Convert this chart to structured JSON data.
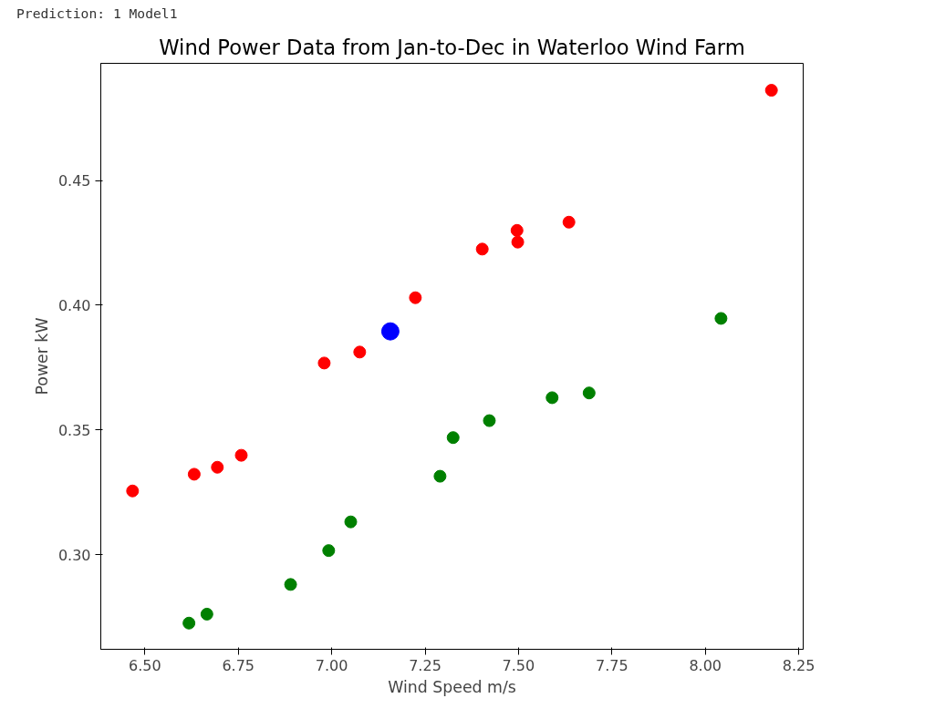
{
  "chart_data": {
    "type": "scatter",
    "title": "Wind Power Data from Jan-to-Dec in Waterloo Wind Farm",
    "xlabel": "Wind Speed m/s",
    "ylabel": "Power kW",
    "annotations": [
      "Prediction: 1 Model1"
    ],
    "series": [
      {
        "color": "#ff0000",
        "x": [
          6.467,
          6.632,
          6.694,
          6.758,
          6.98,
          7.075,
          7.224,
          7.403,
          7.496,
          7.498,
          7.635,
          8.177
        ],
        "values": [
          0.3255,
          0.3322,
          0.335,
          0.3398,
          0.3768,
          0.3812,
          0.403,
          0.4225,
          0.43,
          0.4253,
          0.4333,
          0.4862
        ]
      },
      {
        "color": "#008000",
        "x": [
          6.618,
          6.666,
          6.89,
          6.992,
          7.051,
          7.29,
          7.325,
          7.422,
          7.59,
          7.689,
          8.042
        ],
        "values": [
          0.2725,
          0.2761,
          0.288,
          0.3016,
          0.3131,
          0.3314,
          0.3469,
          0.3537,
          0.3629,
          0.3648,
          0.3947
        ]
      },
      {
        "color": "#0000ff",
        "x": [
          7.157
        ],
        "values": [
          0.3895
        ]
      }
    ],
    "xlim": [
      6.382,
      8.262
    ],
    "ylim": [
      0.262,
      0.497
    ],
    "xticks": [
      {
        "value": 6.5,
        "label": "6.50"
      },
      {
        "value": 6.75,
        "label": "6.75"
      },
      {
        "value": 7.0,
        "label": "7.00"
      },
      {
        "value": 7.25,
        "label": "7.25"
      },
      {
        "value": 7.5,
        "label": "7.50"
      },
      {
        "value": 7.75,
        "label": "7.75"
      },
      {
        "value": 8.0,
        "label": "8.00"
      },
      {
        "value": 8.25,
        "label": "8.25"
      }
    ],
    "yticks": [
      {
        "value": 0.3,
        "label": "0.30"
      },
      {
        "value": 0.35,
        "label": "0.35"
      },
      {
        "value": 0.4,
        "label": "0.40"
      },
      {
        "value": 0.45,
        "label": "0.45"
      }
    ],
    "marker": "circle"
  }
}
